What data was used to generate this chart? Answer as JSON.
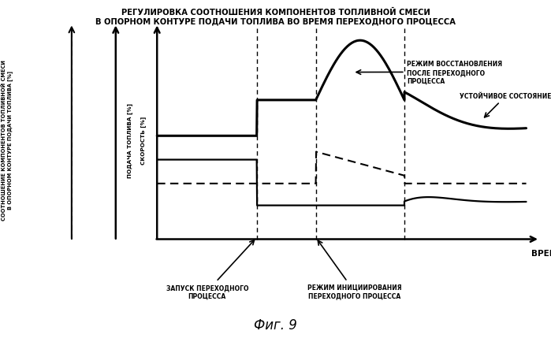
{
  "title_line1": "РЕГУЛИРОВКА СООТНОШЕНИЯ КОМПОНЕНТОВ ТОПЛИВНОЙ СМЕСИ",
  "title_line2": "В ОПОРНОМ КОНТУРЕ ПОДАЧИ ТОПЛИВА ВО ВРЕМЯ ПЕРЕХОДНОГО ПРОЦЕССА",
  "ylabel1": "СООТНОШЕНИЕ КОМПОНЕНТОВ ТОПЛИВНОЙ СМЕСИ\nВ ОПОРНОМ КОНТУРЕ ПОДАЧИ ТОПЛИВА [%]",
  "ylabel2": "ПОДАЧА ТОПЛИВА [%]",
  "ylabel3": "СКОРОСТЬ [%]",
  "xlabel": "ВРЕМЯ",
  "fig_label": "Фиг. 9",
  "annotation1": "ЗАПУСК ПЕРЕХОДНОГО\nПРОЦЕССА",
  "annotation2": "РЕЖИМ ИНИЦИИРОВАНИЯ\nПЕРЕХОДНОГО ПРОЦЕССА",
  "annotation3": "РЕЖИМ ВОССТАНОВЛЕНИЯ\nПОСЛЕ ПЕРЕХОДНОГО\nПРОЦЕССА",
  "annotation4": "УСТОЙЧИВОЕ СОСТОЯНИЕ",
  "t_transition1": 0.27,
  "t_transition2": 0.43,
  "t_transition3": 0.67,
  "bg_color": "#ffffff",
  "line_color": "#000000"
}
